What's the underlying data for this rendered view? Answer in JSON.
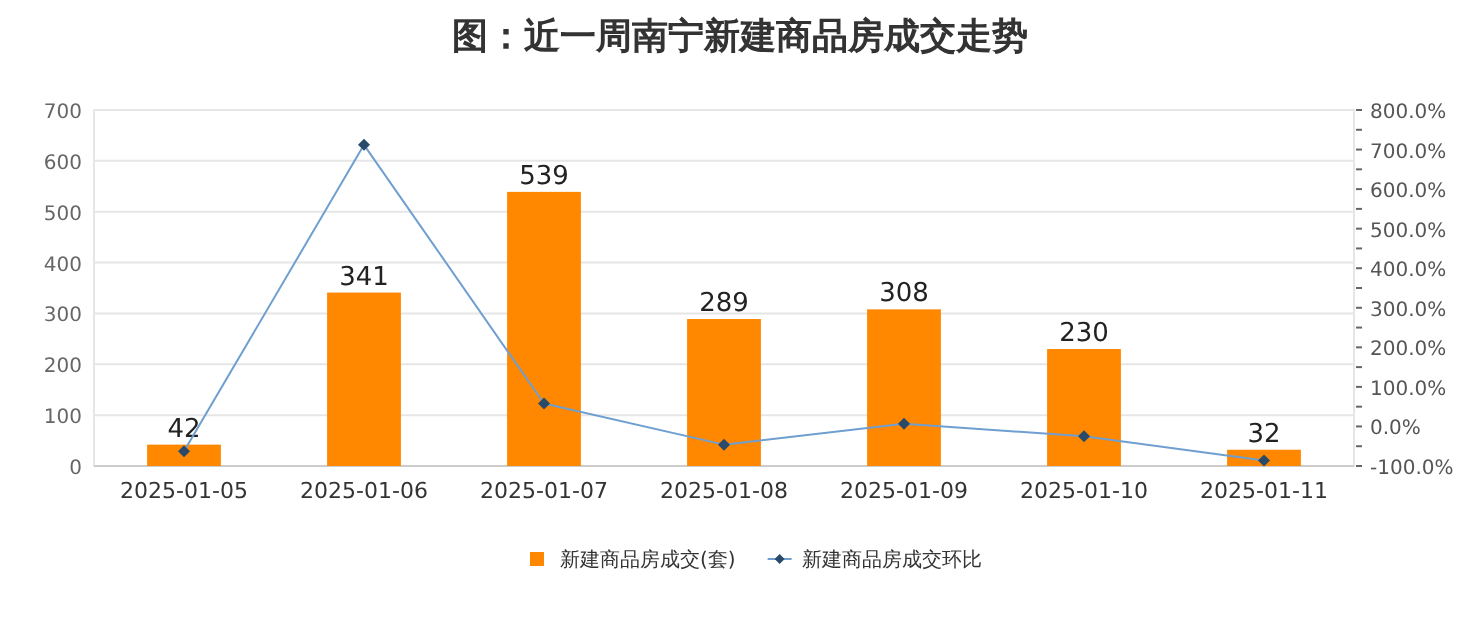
{
  "chart_data": {
    "type": "bar",
    "title": "图：近一周南宁新建商品房成交走势",
    "categories": [
      "2025-01-05",
      "2025-01-06",
      "2025-01-07",
      "2025-01-08",
      "2025-01-09",
      "2025-01-10",
      "2025-01-11"
    ],
    "series": [
      {
        "name": "新建商品房成交(套)",
        "color": "#ff8800",
        "values": [
          42,
          341,
          539,
          289,
          308,
          230,
          32
        ],
        "value_labels": [
          "42",
          "341",
          "539",
          "289",
          "308",
          "230",
          "32"
        ]
      },
      {
        "name": "新建商品房成交环比",
        "type": "line",
        "axis": "y2",
        "color": "#6f9fd0",
        "marker": "diamond",
        "values": [
          -63,
          712,
          58,
          -46,
          7,
          -25,
          -86
        ]
      }
    ],
    "ylim": [
      0,
      700
    ],
    "yticks": [
      0,
      100,
      200,
      300,
      400,
      500,
      600,
      700
    ],
    "y2lim": [
      -100,
      800
    ],
    "y2ticks": [
      {
        "value": -100,
        "label": "-100.0%"
      },
      {
        "value": -50,
        "label": null
      },
      {
        "value": 0,
        "label": "0.0%"
      },
      {
        "value": 50,
        "label": null
      },
      {
        "value": 100,
        "label": "100.0%"
      },
      {
        "value": 150,
        "label": null
      },
      {
        "value": 200,
        "label": "200.0%"
      },
      {
        "value": 250,
        "label": null
      },
      {
        "value": 300,
        "label": "300.0%"
      },
      {
        "value": 350,
        "label": null
      },
      {
        "value": 400,
        "label": "400.0%"
      },
      {
        "value": 450,
        "label": null
      },
      {
        "value": 500,
        "label": "500.0%"
      },
      {
        "value": 550,
        "label": null
      },
      {
        "value": 600,
        "label": "600.0%"
      },
      {
        "value": 650,
        "label": null
      },
      {
        "value": 700,
        "label": "700.0%"
      },
      {
        "value": 750,
        "label": null
      },
      {
        "value": 800,
        "label": "800.0%"
      }
    ],
    "grid": "y",
    "legend": "bottom"
  }
}
